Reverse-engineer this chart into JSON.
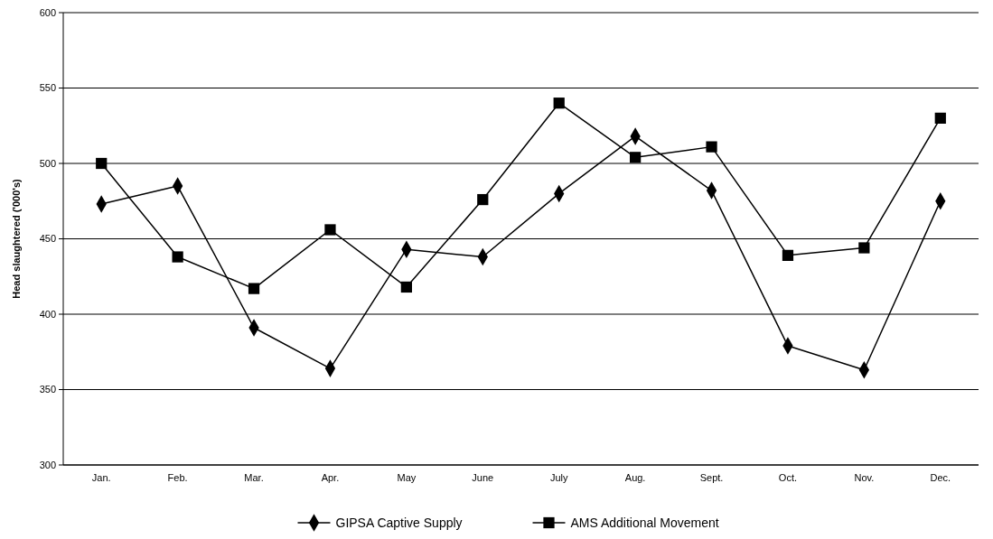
{
  "chart_data": {
    "type": "line",
    "ylabel": "Head slaughtered ('000's)",
    "categories": [
      "Jan.",
      "Feb.",
      "Mar.",
      "Apr.",
      "May",
      "June",
      "July",
      "Aug.",
      "Sept.",
      "Oct.",
      "Nov.",
      "Dec."
    ],
    "series": [
      {
        "name": "GIPSA Captive Supply",
        "color": "#000000",
        "marker": "diamond",
        "values": [
          473,
          485,
          391,
          364,
          443,
          438,
          480,
          518,
          482,
          379,
          363,
          475
        ]
      },
      {
        "name": "AMS Additional Movement",
        "color": "#000000",
        "marker": "square",
        "values": [
          500,
          438,
          417,
          456,
          418,
          476,
          540,
          504,
          511,
          439,
          444,
          530
        ]
      }
    ],
    "ylim": [
      300,
      600
    ],
    "yticks": [
      300,
      350,
      400,
      450,
      500,
      550,
      600
    ],
    "grid": "y",
    "legend": "bottom",
    "line_style": "solid"
  }
}
